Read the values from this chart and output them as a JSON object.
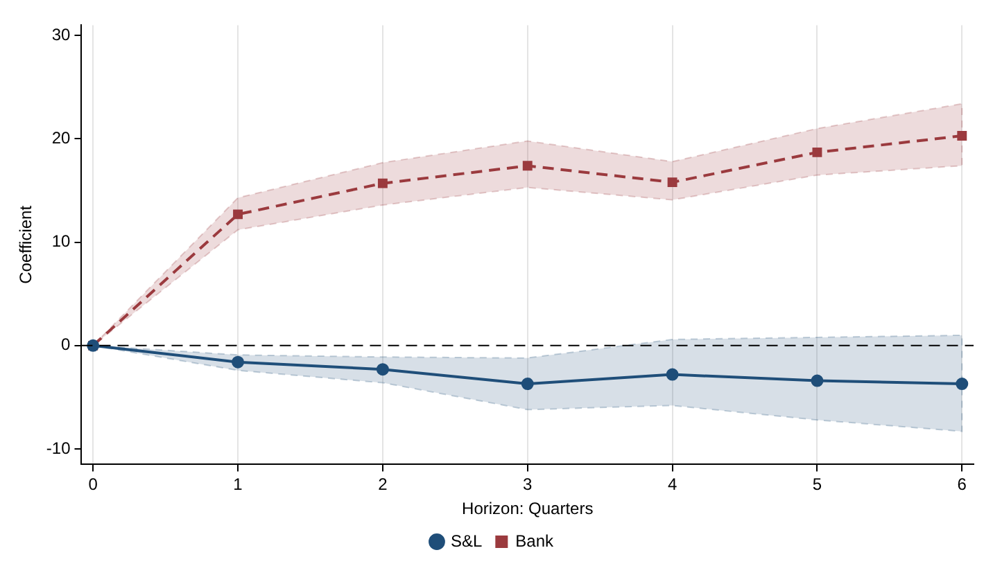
{
  "chart_data": {
    "type": "line",
    "xlabel": "Horizon: Quarters",
    "ylabel": "Coefficient",
    "x": [
      0,
      1,
      2,
      3,
      4,
      5,
      6
    ],
    "xlim": [
      -0.08,
      6.08
    ],
    "xticks": [
      0,
      1,
      2,
      3,
      4,
      5,
      6
    ],
    "ylim": [
      -11.5,
      31
    ],
    "yticks": [
      -10,
      0,
      10,
      20,
      30
    ],
    "grid": "x",
    "legend": "bottom",
    "ref_lines": [
      {
        "axis": "y",
        "value": 0,
        "color": "#000000",
        "line_style": "dashed"
      }
    ],
    "series": [
      {
        "name": "S&L",
        "color": "#1f4e79",
        "marker": "circle",
        "line_style": "solid",
        "values": [
          0,
          -1.6,
          -2.3,
          -3.7,
          -2.8,
          -3.4,
          -3.7
        ],
        "lower": [
          0,
          -2.4,
          -3.6,
          -6.2,
          -5.8,
          -7.2,
          -8.3
        ],
        "upper": [
          0,
          -0.9,
          -1.1,
          -1.2,
          0.6,
          0.8,
          1.0
        ]
      },
      {
        "name": "Bank",
        "color": "#9b3a3e",
        "marker": "square",
        "line_style": "dashed",
        "values": [
          0,
          12.7,
          15.7,
          17.4,
          15.8,
          18.7,
          20.3
        ],
        "lower": [
          0,
          11.2,
          13.6,
          15.3,
          14.1,
          16.5,
          17.4
        ],
        "upper": [
          0,
          14.3,
          17.7,
          19.8,
          17.8,
          21.0,
          23.4
        ]
      }
    ]
  }
}
